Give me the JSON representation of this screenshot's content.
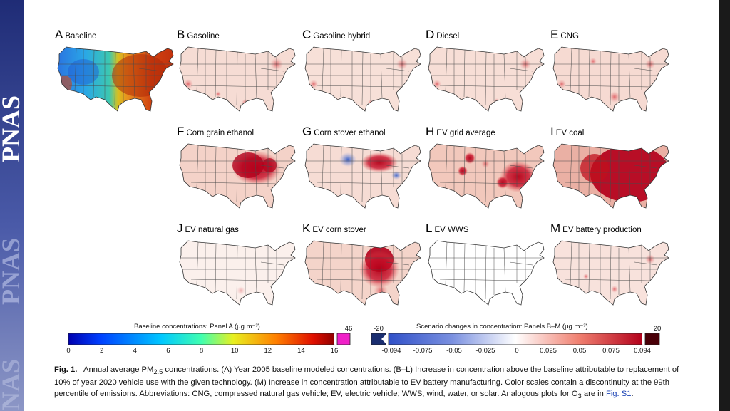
{
  "sidebar": {
    "journal": "PNAS"
  },
  "panels": [
    {
      "letter": "A",
      "name": "Baseline"
    },
    {
      "letter": "B",
      "name": "Gasoline"
    },
    {
      "letter": "C",
      "name": "Gasoline hybrid"
    },
    {
      "letter": "D",
      "name": "Diesel"
    },
    {
      "letter": "E",
      "name": "CNG"
    },
    {
      "letter": "F",
      "name": "Corn grain ethanol"
    },
    {
      "letter": "G",
      "name": "Corn stover ethanol"
    },
    {
      "letter": "H",
      "name": "EV grid average"
    },
    {
      "letter": "I",
      "name": "EV coal"
    },
    {
      "letter": "J",
      "name": "EV natural gas"
    },
    {
      "letter": "K",
      "name": "EV corn stover"
    },
    {
      "letter": "L",
      "name": "EV WWS"
    },
    {
      "letter": "M",
      "name": "EV battery production"
    }
  ],
  "colorbar_a": {
    "title": "Baseline concentrations: Panel A (μg m⁻³)",
    "ticks": [
      "0",
      "2",
      "4",
      "6",
      "8",
      "10",
      "12",
      "14",
      "16"
    ],
    "extreme": "46"
  },
  "colorbar_b": {
    "title": "Scenario changes in concentration: Panels B–M (μg m⁻³)",
    "ticks": [
      "-0.094",
      "-0.075",
      "-0.05",
      "-0.025",
      "0",
      "0.025",
      "0.05",
      "0.075",
      "0.094"
    ],
    "extreme_low": "-20",
    "extreme_high": "20"
  },
  "caption": {
    "fig": "Fig. 1.",
    "text_1": "Annual average PM",
    "sub_1": "2.5",
    "text_2": " concentrations. (A) Year 2005 baseline modeled concentrations. (B–L) Increase in concentration above the baseline attributable to replacement of 10% of year 2020 vehicle use with the given technology. (M) Increase in concentration attributable to EV battery manufacturing. Color scales contain a discontinuity at the 99th percentile of emissions. Abbreviations: CNG, compressed natural gas vehicle; EV, electric vehicle; WWS, wind, water, or solar. Analogous plots for O",
    "sub_2": "3",
    "text_3": " are in ",
    "link": "Fig. S1",
    "text_4": "."
  },
  "colors": {
    "sidebar": "#2e3b8a",
    "baseline_low": "#1a4fd0",
    "baseline_high": "#c8200c",
    "change_high": "#b3001b",
    "change_low": "#2b55c5",
    "link": "#1b43b5"
  }
}
